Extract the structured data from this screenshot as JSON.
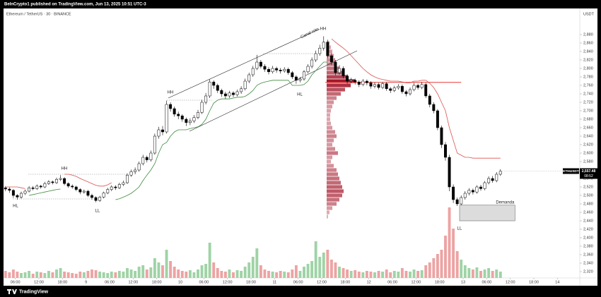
{
  "header": {
    "text": "BeInCrypto1 published on TradingView.com, Jun 13, 2025 10:51 UTC-3"
  },
  "chart_data": {
    "type": "candlestick",
    "title": "Ethereum / TetherUS · 30 · BINANCE",
    "currency": "USDT",
    "up_color": "#ffffff",
    "down_color": "#000000",
    "volume_up_color": "#9fd3a6",
    "volume_down_color": "#eda3a3",
    "open": [
      2518,
      2515,
      2512,
      2500,
      2496,
      2505,
      2510,
      2518,
      2516,
      2522,
      2520,
      2528,
      2532,
      2530,
      2538,
      2540,
      2528,
      2522,
      2520,
      2514,
      2508,
      2510,
      2500,
      2495,
      2488,
      2496,
      2506,
      2514,
      2520,
      2518,
      2526,
      2530,
      2548,
      2556,
      2560,
      2575,
      2590,
      2584,
      2600,
      2640,
      2655,
      2650,
      2715,
      2705,
      2692,
      2688,
      2680,
      2672,
      2676,
      2684,
      2696,
      2720,
      2735,
      2768,
      2760,
      2748,
      2740,
      2735,
      2742,
      2738,
      2745,
      2752,
      2770,
      2785,
      2800,
      2815,
      2805,
      2798,
      2792,
      2800,
      2796,
      2794,
      2798,
      2790,
      2780,
      2772,
      2775,
      2792,
      2805,
      2820,
      2835,
      2848,
      2862,
      2830,
      2815,
      2790,
      2800,
      2782,
      2770,
      2772,
      2768,
      2762,
      2770,
      2766,
      2758,
      2762,
      2755,
      2764,
      2752,
      2748,
      2754,
      2758,
      2745,
      2740,
      2750,
      2760,
      2755,
      2762,
      2735,
      2715,
      2700,
      2660,
      2620,
      2590,
      2520,
      2490,
      2480,
      2495,
      2505,
      2512,
      2508,
      2520,
      2516,
      2530,
      2540,
      2535,
      2550
    ],
    "high": [
      2522,
      2519,
      2515,
      2503,
      2509,
      2514,
      2522,
      2522,
      2526,
      2525,
      2532,
      2536,
      2535,
      2542,
      2548,
      2543,
      2531,
      2526,
      2523,
      2517,
      2514,
      2513,
      2504,
      2498,
      2499,
      2509,
      2518,
      2524,
      2524,
      2530,
      2535,
      2552,
      2561,
      2566,
      2580,
      2596,
      2594,
      2606,
      2646,
      2662,
      2664,
      2724,
      2720,
      2710,
      2698,
      2692,
      2684,
      2682,
      2690,
      2702,
      2726,
      2742,
      2774,
      2772,
      2764,
      2752,
      2745,
      2747,
      2746,
      2750,
      2758,
      2776,
      2790,
      2806,
      2832,
      2820,
      2810,
      2803,
      2806,
      2804,
      2801,
      2803,
      2802,
      2794,
      2784,
      2780,
      2796,
      2810,
      2826,
      2842,
      2856,
      2876,
      2868,
      2836,
      2820,
      2808,
      2805,
      2786,
      2778,
      2776,
      2772,
      2775,
      2774,
      2770,
      2767,
      2766,
      2768,
      2768,
      2756,
      2759,
      2763,
      2762,
      2749,
      2755,
      2766,
      2764,
      2768,
      2766,
      2740,
      2720,
      2704,
      2665,
      2626,
      2596,
      2526,
      2495,
      2500,
      2510,
      2517,
      2516,
      2524,
      2525,
      2534,
      2545,
      2546,
      2555,
      2562
    ],
    "low": [
      2510,
      2506,
      2494,
      2490,
      2492,
      2501,
      2507,
      2512,
      2513,
      2516,
      2517,
      2525,
      2526,
      2527,
      2534,
      2524,
      2518,
      2516,
      2510,
      2503,
      2504,
      2496,
      2490,
      2484,
      2485,
      2493,
      2503,
      2510,
      2513,
      2515,
      2522,
      2527,
      2544,
      2550,
      2556,
      2571,
      2578,
      2580,
      2596,
      2634,
      2642,
      2646,
      2698,
      2686,
      2680,
      2674,
      2664,
      2666,
      2671,
      2680,
      2692,
      2715,
      2730,
      2752,
      2742,
      2733,
      2728,
      2730,
      2732,
      2734,
      2740,
      2748,
      2765,
      2780,
      2796,
      2800,
      2792,
      2786,
      2788,
      2790,
      2788,
      2790,
      2785,
      2775,
      2764,
      2767,
      2771,
      2788,
      2800,
      2815,
      2830,
      2842,
      2824,
      2808,
      2784,
      2785,
      2776,
      2764,
      2765,
      2762,
      2756,
      2758,
      2760,
      2752,
      2753,
      2750,
      2751,
      2747,
      2742,
      2744,
      2750,
      2740,
      2734,
      2736,
      2746,
      2750,
      2751,
      2730,
      2708,
      2694,
      2654,
      2612,
      2582,
      2510,
      2482,
      2475,
      2477,
      2490,
      2500,
      2502,
      2504,
      2511,
      2512,
      2526,
      2530,
      2531,
      2546
    ],
    "close": [
      2515,
      2512,
      2500,
      2496,
      2505,
      2510,
      2518,
      2516,
      2522,
      2520,
      2528,
      2532,
      2530,
      2538,
      2540,
      2528,
      2522,
      2520,
      2514,
      2508,
      2510,
      2500,
      2495,
      2488,
      2496,
      2506,
      2514,
      2520,
      2518,
      2526,
      2530,
      2548,
      2556,
      2560,
      2575,
      2590,
      2584,
      2600,
      2640,
      2655,
      2650,
      2715,
      2705,
      2692,
      2688,
      2680,
      2672,
      2676,
      2684,
      2696,
      2720,
      2735,
      2768,
      2760,
      2748,
      2740,
      2735,
      2742,
      2738,
      2745,
      2752,
      2770,
      2785,
      2800,
      2815,
      2805,
      2798,
      2792,
      2800,
      2796,
      2794,
      2798,
      2790,
      2780,
      2772,
      2775,
      2792,
      2805,
      2820,
      2835,
      2848,
      2862,
      2830,
      2815,
      2790,
      2800,
      2782,
      2770,
      2772,
      2768,
      2762,
      2770,
      2766,
      2758,
      2762,
      2755,
      2764,
      2752,
      2748,
      2754,
      2758,
      2745,
      2740,
      2750,
      2760,
      2755,
      2762,
      2735,
      2715,
      2700,
      2660,
      2620,
      2590,
      2520,
      2490,
      2480,
      2495,
      2505,
      2512,
      2508,
      2520,
      2516,
      2530,
      2540,
      2535,
      2550,
      2557
    ],
    "volume": [
      10,
      8,
      12,
      9,
      7,
      8,
      10,
      6,
      9,
      8,
      7,
      10,
      8,
      12,
      14,
      9,
      8,
      7,
      6,
      9,
      8,
      10,
      12,
      11,
      9,
      8,
      7,
      9,
      8,
      10,
      9,
      14,
      12,
      10,
      16,
      18,
      12,
      15,
      28,
      22,
      18,
      40,
      24,
      16,
      12,
      10,
      9,
      11,
      8,
      12,
      18,
      20,
      50,
      22,
      14,
      10,
      9,
      12,
      8,
      11,
      10,
      16,
      22,
      30,
      42,
      18,
      12,
      10,
      9,
      8,
      10,
      9,
      8,
      12,
      18,
      10,
      16,
      20,
      24,
      52,
      30,
      36,
      40,
      26,
      22,
      16,
      14,
      12,
      10,
      11,
      9,
      8,
      10,
      9,
      8,
      10,
      9,
      12,
      8,
      10,
      9,
      14,
      10,
      9,
      12,
      10,
      11,
      18,
      22,
      28,
      34,
      40,
      60,
      100,
      70,
      38,
      26,
      18,
      14,
      12,
      15,
      10,
      12,
      14,
      10,
      12,
      9
    ],
    "volume_lim": [
      0,
      110
    ],
    "overlays": [
      {
        "color": "#d9534f",
        "values": [
          2520,
          2520,
          2520,
          2520,
          2518,
          2516,
          null,
          null,
          null,
          null,
          null,
          null,
          null,
          null,
          null,
          2550,
          2550,
          2548,
          2545,
          2540,
          2536,
          2532,
          2528,
          2524,
          2522,
          2522,
          2525,
          2530,
          null,
          null,
          null,
          null,
          null,
          null,
          null,
          null,
          null,
          null,
          null,
          null,
          null,
          null,
          null,
          null,
          null,
          null,
          null,
          null,
          null,
          null,
          null,
          null,
          null,
          null,
          null,
          null,
          null,
          null,
          null,
          null,
          null,
          null,
          null,
          null,
          null,
          null,
          null,
          null,
          null,
          null,
          null,
          null,
          null,
          null,
          null,
          null,
          null,
          null,
          null,
          null,
          null,
          null,
          null,
          2870,
          2862,
          2855,
          2848,
          2840,
          2830,
          2820,
          2810,
          2800,
          2792,
          2785,
          2780,
          2776,
          2774,
          2772,
          2770,
          2770,
          2770,
          2768,
          2766,
          2766,
          2770,
          2770,
          2772,
          2772,
          2765,
          2755,
          2740,
          2720,
          2700,
          2660,
          2630,
          2600,
          2595,
          2590,
          2590,
          2588,
          2588,
          2588,
          2588,
          2588,
          2588,
          2588,
          2588
        ]
      },
      {
        "color": "#3d8b3d",
        "values": [
          null,
          null,
          null,
          null,
          null,
          null,
          2500,
          2502,
          2504,
          2506,
          2508,
          2510,
          2512,
          2514,
          2515,
          null,
          null,
          null,
          null,
          null,
          null,
          null,
          null,
          null,
          null,
          null,
          null,
          null,
          2490,
          2492,
          2496,
          2500,
          2505,
          2512,
          2520,
          2535,
          2548,
          2560,
          2575,
          2600,
          2620,
          2625,
          2640,
          2650,
          2655,
          2655,
          2655,
          2658,
          2660,
          2662,
          2668,
          2680,
          2700,
          2718,
          2725,
          2728,
          2728,
          2728,
          2730,
          2732,
          2732,
          2734,
          2740,
          2748,
          2760,
          2765,
          2768,
          2770,
          2772,
          2772,
          2772,
          2772,
          2772,
          2760,
          2760,
          2760,
          2762,
          2770,
          2785,
          2795,
          2805,
          2815,
          2815,
          null,
          null,
          null,
          null,
          null,
          null,
          null,
          null,
          null,
          null,
          null,
          null,
          null,
          null,
          null,
          null,
          null,
          null,
          null,
          null,
          null,
          null,
          null,
          null,
          null,
          null,
          null,
          null,
          null,
          null,
          null,
          null,
          null,
          null,
          null,
          null,
          null,
          null,
          null,
          null,
          null,
          null,
          null,
          null,
          null
        ]
      }
    ],
    "level": {
      "value": 2767,
      "color": "#e53935"
    },
    "zone": {
      "label": "Demanda",
      "top": 2477,
      "bottom": 2440
    },
    "profile": {
      "color": "#a3172a",
      "prices": [
        2860,
        2850,
        2840,
        2830,
        2820,
        2810,
        2800,
        2790,
        2780,
        2770,
        2760,
        2750,
        2740,
        2730,
        2720,
        2710,
        2700,
        2690,
        2680,
        2670,
        2660,
        2650,
        2640,
        2630,
        2620,
        2610,
        2600,
        2590,
        2580,
        2570,
        2560,
        2550,
        2540,
        2530,
        2520,
        2510,
        2500,
        2490,
        2480,
        2470,
        2460,
        2450
      ],
      "volumes": [
        4,
        6,
        8,
        10,
        12,
        14,
        18,
        22,
        30,
        40,
        34,
        26,
        20,
        14,
        10,
        8,
        6,
        5,
        5,
        6,
        8,
        12,
        14,
        10,
        8,
        12,
        16,
        8,
        6,
        10,
        14,
        16,
        18,
        20,
        22,
        24,
        22,
        18,
        14,
        8,
        4,
        2
      ]
    },
    "annotations": [
      "HL",
      "HH",
      "LL",
      "HH",
      "HH",
      "HL",
      "LL",
      "Canal roto"
    ],
    "last": {
      "symbol": "ETHUSDT",
      "price": {
        "value": 2557.48,
        "label": "2,557.48"
      },
      "countdown": "08:52"
    },
    "xlim": [
      -1.4,
      146.2
    ],
    "xticks": [
      {
        "value": 2.5,
        "label": "06:00"
      },
      {
        "value": 8.5,
        "label": "12:00"
      },
      {
        "value": 14.5,
        "label": "18:00"
      },
      {
        "value": 20.5,
        "label": "9"
      },
      {
        "value": 26.5,
        "label": "06:00"
      },
      {
        "value": 32.5,
        "label": "12:00"
      },
      {
        "value": 38.5,
        "label": "18:00"
      },
      {
        "value": 44.5,
        "label": "10"
      },
      {
        "value": 50.5,
        "label": "06:00"
      },
      {
        "value": 56.5,
        "label": "12:00"
      },
      {
        "value": 62.5,
        "label": "18:00"
      },
      {
        "value": 68.5,
        "label": "11"
      },
      {
        "value": 74.5,
        "label": "06:00"
      },
      {
        "value": 80.5,
        "label": "12:00"
      },
      {
        "value": 86.5,
        "label": "18:00"
      },
      {
        "value": 92.5,
        "label": "12"
      },
      {
        "value": 98.5,
        "label": "06:00"
      },
      {
        "value": 104.5,
        "label": "12:00"
      },
      {
        "value": 110.5,
        "label": "18:00"
      },
      {
        "value": 116.5,
        "label": "13"
      },
      {
        "value": 122.5,
        "label": "06:00"
      },
      {
        "value": 128.5,
        "label": "12:00"
      },
      {
        "value": 134.5,
        "label": "18:00"
      },
      {
        "value": 140.5,
        "label": "14"
      }
    ],
    "ylim": [
      2305,
      2910
    ],
    "yticks": [
      {
        "value": 2320,
        "label": "2,320"
      },
      {
        "value": 2340,
        "label": "2,340"
      },
      {
        "value": 2360,
        "label": "2,360"
      },
      {
        "value": 2380,
        "label": "2,380"
      },
      {
        "value": 2400,
        "label": "2,400"
      },
      {
        "value": 2420,
        "label": "2,420"
      },
      {
        "value": 2440,
        "label": "2,440"
      },
      {
        "value": 2460,
        "label": "2,460"
      },
      {
        "value": 2480,
        "label": "2,480"
      },
      {
        "value": 2500,
        "label": "2,500"
      },
      {
        "value": 2520,
        "label": "2,520"
      },
      {
        "value": 2540,
        "label": "2,540"
      },
      {
        "value": 2560,
        "label": "2,560"
      },
      {
        "value": 2580,
        "label": "2,580"
      },
      {
        "value": 2600,
        "label": "2,600"
      },
      {
        "value": 2620,
        "label": "2,620"
      },
      {
        "value": 2640,
        "label": "2,640"
      },
      {
        "value": 2660,
        "label": "2,660"
      },
      {
        "value": 2680,
        "label": "2,680"
      },
      {
        "value": 2700,
        "label": "2,700"
      },
      {
        "value": 2720,
        "label": "2,720"
      },
      {
        "value": 2740,
        "label": "2,740"
      },
      {
        "value": 2760,
        "label": "2,760"
      },
      {
        "value": 2780,
        "label": "2,780"
      },
      {
        "value": 2800,
        "label": "2,800"
      },
      {
        "value": 2820,
        "label": "2,820"
      },
      {
        "value": 2840,
        "label": "2,840"
      },
      {
        "value": 2860,
        "label": "2,860"
      },
      {
        "value": 2880,
        "label": "2,880"
      }
    ]
  },
  "footer": {
    "brand": "TradingView"
  }
}
